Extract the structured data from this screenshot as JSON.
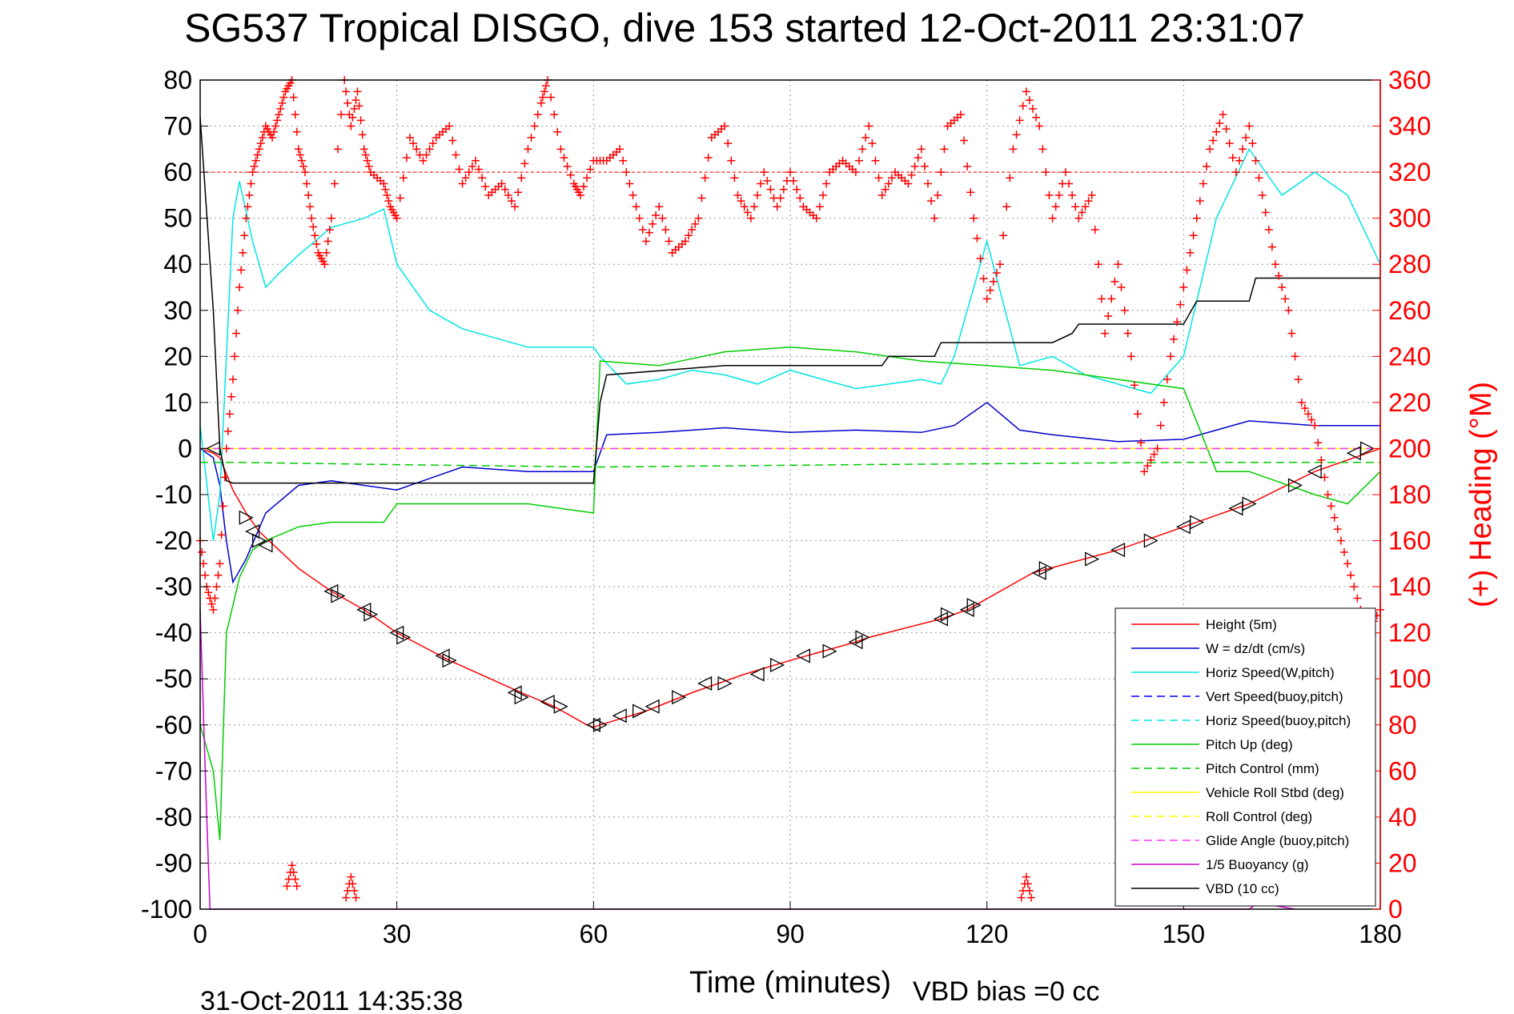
{
  "chart_data": {
    "type": "line",
    "title": "SG537 Tropical DISGO, dive 153 started 12-Oct-2011 23:31:07",
    "xlabel": "Time (minutes)",
    "ylabel": "",
    "y2label": "(+) Heading (°M)",
    "xlim": [
      0,
      180
    ],
    "ylim": [
      -100,
      80
    ],
    "y2lim": [
      0,
      360
    ],
    "xticks": [
      "0",
      "30",
      "60",
      "90",
      "120",
      "150",
      "180"
    ],
    "yticks": [
      "80",
      "70",
      "60",
      "50",
      "40",
      "30",
      "20",
      "10",
      "0",
      "-10",
      "-20",
      "-30",
      "-40",
      "-50",
      "-60",
      "-70",
      "-80",
      "-90",
      "-100"
    ],
    "y2ticks": [
      "360",
      "340",
      "320",
      "300",
      "280",
      "260",
      "240",
      "220",
      "200",
      "180",
      "160",
      "140",
      "120",
      "100",
      "80",
      "60",
      "40",
      "20",
      "0"
    ],
    "grid": true,
    "legend_position": "bottom-right",
    "footer_date": "31-Oct-2011 14:35:38",
    "footer_vbd_bias": "VBD bias =0 cc",
    "colors": {
      "height": "#ff0000",
      "w": "#0000cc",
      "horiz_speed": "#00e5e5",
      "pitch": "#00cc00",
      "roll": "#ffff00",
      "glide": "#ff33ff",
      "buoyancy": "#cc00cc",
      "vbd": "#000000",
      "heading": "#ff0000",
      "heading_axis": "#ff0000"
    },
    "series": [
      {
        "name": "Height (5m)",
        "color": "#ff0000",
        "dash": "solid",
        "axis": "left",
        "x": [
          0,
          2,
          3,
          5,
          7,
          9,
          12,
          15,
          20,
          25,
          30,
          38,
          49,
          54,
          59,
          60,
          61,
          68,
          75,
          83,
          90,
          100,
          102,
          113,
          117,
          127,
          140,
          150,
          160,
          170,
          178,
          180
        ],
        "y": [
          0,
          -1,
          -2,
          -9,
          -14,
          -18,
          -22,
          -26,
          -31,
          -35,
          -40,
          -46,
          -53,
          -56,
          -60,
          -60.5,
          -60,
          -57,
          -53,
          -49,
          -46,
          -42,
          -41,
          -37,
          -35,
          -27,
          -22,
          -17,
          -12,
          -5,
          -1,
          0
        ]
      },
      {
        "name": "W = dz/dt (cm/s)",
        "color": "#0000cc",
        "dash": "solid",
        "axis": "left",
        "x": [
          0,
          1,
          2,
          3,
          4,
          5,
          7,
          10,
          15,
          20,
          30,
          40,
          50,
          60,
          62,
          70,
          80,
          90,
          100,
          110,
          115,
          120,
          125,
          130,
          140,
          150,
          160,
          170,
          180
        ],
        "y": [
          0,
          -1,
          -2,
          -8,
          -20,
          -29,
          -24,
          -14,
          -8,
          -7,
          -9,
          -4,
          -5,
          -5,
          3,
          3.5,
          4.5,
          3.5,
          4,
          3.5,
          5,
          10,
          4,
          3,
          1.5,
          2,
          6,
          5,
          5
        ]
      },
      {
        "name": "Horiz Speed(W,pitch)",
        "color": "#00e5e5",
        "dash": "solid",
        "axis": "left",
        "x": [
          0,
          2,
          3,
          4,
          5,
          6,
          8,
          10,
          12,
          15,
          20,
          25,
          28,
          30,
          35,
          40,
          45,
          50,
          55,
          60,
          61,
          65,
          70,
          75,
          80,
          85,
          90,
          95,
          100,
          105,
          110,
          113,
          115,
          120,
          125,
          130,
          135,
          140,
          145,
          150,
          155,
          160,
          165,
          170,
          175,
          180
        ],
        "y": [
          5,
          -20,
          -10,
          20,
          50,
          58,
          45,
          35,
          38,
          42,
          48,
          50,
          52,
          40,
          30,
          26,
          24,
          22,
          22,
          22,
          20,
          14,
          15,
          17,
          16,
          14,
          17,
          15,
          13,
          14,
          15,
          14,
          20,
          45,
          18,
          20,
          16,
          14,
          12,
          20,
          50,
          65,
          55,
          60,
          55,
          40
        ]
      },
      {
        "name": "Vert Speed(buoy,pitch)",
        "color": "#0000ff",
        "dash": "dash",
        "axis": "left",
        "x": [
          0,
          180
        ],
        "y": [
          0,
          0
        ]
      },
      {
        "name": "Horiz Speed(buoy,pitch)",
        "color": "#00e5e5",
        "dash": "dash",
        "axis": "left",
        "x": [
          0,
          180
        ],
        "y": [
          0,
          0
        ]
      },
      {
        "name": "Pitch Up (deg)",
        "color": "#00cc00",
        "dash": "solid",
        "axis": "left",
        "x": [
          0,
          2,
          3,
          4,
          6,
          8,
          10,
          15,
          20,
          28,
          30,
          40,
          50,
          60,
          61,
          70,
          80,
          90,
          100,
          110,
          120,
          130,
          140,
          150,
          155,
          160,
          170,
          175,
          180
        ],
        "y": [
          -60,
          -70,
          -85,
          -40,
          -28,
          -22,
          -20,
          -17,
          -16,
          -16,
          -12,
          -12,
          -12,
          -14,
          19,
          18,
          21,
          22,
          21,
          19,
          18,
          17,
          15,
          13,
          -5,
          -5,
          -10,
          -12,
          -5
        ]
      },
      {
        "name": "Pitch Control (mm)",
        "color": "#00cc00",
        "dash": "dash",
        "axis": "left",
        "x": [
          0,
          5,
          30,
          60,
          61,
          100,
          150,
          180
        ],
        "y": [
          -3,
          -3,
          -3.5,
          -4,
          -4,
          -3.5,
          -3,
          -3
        ]
      },
      {
        "name": "Vehicle Roll Stbd (deg)",
        "color": "#ffff00",
        "dash": "solid",
        "axis": "left",
        "x": [
          0,
          5,
          10,
          15,
          20,
          25,
          30,
          40,
          50,
          60,
          70,
          80,
          90,
          100,
          110,
          120,
          130,
          140,
          150,
          160,
          170,
          180
        ],
        "y": [
          0,
          0,
          0,
          0,
          0,
          0,
          0,
          0,
          0,
          0,
          0,
          0,
          0,
          0,
          0,
          0,
          0,
          0,
          0,
          0,
          0,
          0
        ]
      },
      {
        "name": "Roll Control (deg)",
        "color": "#ffff00",
        "dash": "dash",
        "axis": "left",
        "x": [
          0,
          180
        ],
        "y": [
          0,
          0
        ]
      },
      {
        "name": "Glide Angle (buoy,pitch)",
        "color": "#ff33ff",
        "dash": "dash",
        "axis": "left",
        "x": [
          0,
          180
        ],
        "y": [
          0,
          0
        ]
      },
      {
        "name": "1/5 Buoyancy (g)",
        "color": "#cc00cc",
        "dash": "solid",
        "axis": "left",
        "x": [
          0,
          1,
          1.5,
          2,
          3,
          160,
          161,
          163,
          167
        ],
        "y": [
          -35,
          -80,
          -100,
          -100,
          -100,
          -100,
          -99,
          -99,
          -100
        ]
      },
      {
        "name": "VBD (10 cc)",
        "color": "#000000",
        "dash": "solid",
        "axis": "left",
        "x": [
          0,
          2,
          3,
          4,
          5,
          10,
          30,
          40,
          50,
          60,
          61,
          62,
          80,
          104,
          105,
          112,
          113,
          130,
          133,
          134,
          150,
          152,
          160,
          161,
          180
        ],
        "y": [
          72,
          30,
          0,
          -7,
          -7.5,
          -7.5,
          -7.5,
          -7.5,
          -7.5,
          -7.5,
          10,
          16,
          18,
          18,
          20,
          20,
          23,
          23,
          25,
          27,
          27,
          32,
          32,
          37,
          37
        ]
      }
    ],
    "heading": {
      "name": "(+) Heading (°M)",
      "color": "#ff0000",
      "marker": "+",
      "axis": "right",
      "x": [
        0,
        1,
        2,
        3,
        4,
        5,
        6,
        7,
        8,
        9,
        10,
        11,
        12,
        13,
        14,
        15,
        16,
        17,
        18,
        19,
        20,
        22,
        23,
        24,
        25,
        26,
        28,
        29,
        30,
        32,
        34,
        36,
        38,
        40,
        42,
        44,
        46,
        48,
        50,
        52,
        53,
        55,
        57,
        58,
        60,
        62,
        64,
        66,
        68,
        70,
        72,
        74,
        76,
        78,
        80,
        82,
        84,
        86,
        88,
        90,
        92,
        94,
        96,
        98,
        100,
        102,
        104,
        106,
        108,
        110,
        112,
        114,
        116,
        118,
        120,
        122,
        124,
        126,
        128,
        130,
        132,
        134,
        136,
        138,
        140,
        142,
        144,
        146,
        148,
        150,
        152,
        154,
        156,
        158,
        160,
        162,
        164,
        166,
        168,
        170,
        172,
        174,
        176,
        178,
        180
      ],
      "y": [
        160,
        140,
        130,
        150,
        200,
        230,
        270,
        300,
        320,
        330,
        340,
        335,
        345,
        355,
        360,
        330,
        320,
        300,
        285,
        280,
        300,
        360,
        340,
        355,
        330,
        320,
        315,
        305,
        300,
        335,
        325,
        335,
        340,
        315,
        325,
        310,
        315,
        305,
        330,
        350,
        360,
        330,
        315,
        310,
        325,
        325,
        330,
        310,
        290,
        305,
        285,
        290,
        300,
        335,
        340,
        310,
        300,
        320,
        305,
        320,
        305,
        300,
        320,
        325,
        320,
        340,
        310,
        320,
        315,
        330,
        300,
        340,
        345,
        300,
        265,
        280,
        330,
        355,
        340,
        300,
        320,
        300,
        310,
        250,
        280,
        240,
        190,
        200,
        240,
        270,
        300,
        330,
        345,
        320,
        340,
        310,
        280,
        260,
        220,
        210,
        180,
        160,
        140,
        120,
        130
      ]
    },
    "heading_surface_clusters": [
      {
        "x": 14,
        "y": 10
      },
      {
        "x": 23,
        "y": 5
      },
      {
        "x": 126,
        "y": 5
      }
    ],
    "markers": {
      "name": "gps/sample markers",
      "triangles_left": [
        [
          2,
          0
        ],
        [
          8,
          -18
        ],
        [
          10,
          -21
        ],
        [
          20,
          -31
        ],
        [
          25,
          -35
        ],
        [
          30,
          -40
        ],
        [
          37,
          -45
        ],
        [
          48,
          -53
        ],
        [
          53,
          -55
        ],
        [
          60,
          -60
        ],
        [
          64,
          -58
        ],
        [
          69,
          -56
        ],
        [
          77,
          -51
        ],
        [
          85,
          -49
        ],
        [
          92,
          -45
        ],
        [
          100,
          -42
        ],
        [
          113,
          -37
        ],
        [
          117,
          -35
        ],
        [
          128,
          -27
        ],
        [
          140,
          -22
        ],
        [
          150,
          -17
        ],
        [
          158,
          -13
        ],
        [
          170,
          -5
        ],
        [
          176,
          -1
        ]
      ],
      "triangles_right": [
        [
          7,
          -15
        ],
        [
          9,
          -20
        ],
        [
          21,
          -32
        ],
        [
          26,
          -36
        ],
        [
          31,
          -41
        ],
        [
          38,
          -46
        ],
        [
          49,
          -54
        ],
        [
          55,
          -56
        ],
        [
          61,
          -60
        ],
        [
          67,
          -57
        ],
        [
          73,
          -54
        ],
        [
          80,
          -51
        ],
        [
          88,
          -47
        ],
        [
          96,
          -44
        ],
        [
          101,
          -41
        ],
        [
          114,
          -36
        ],
        [
          118,
          -34
        ],
        [
          129,
          -26
        ],
        [
          136,
          -24
        ],
        [
          145,
          -20
        ],
        [
          152,
          -16
        ],
        [
          160,
          -12
        ],
        [
          167,
          -8
        ],
        [
          178,
          0
        ]
      ]
    }
  }
}
